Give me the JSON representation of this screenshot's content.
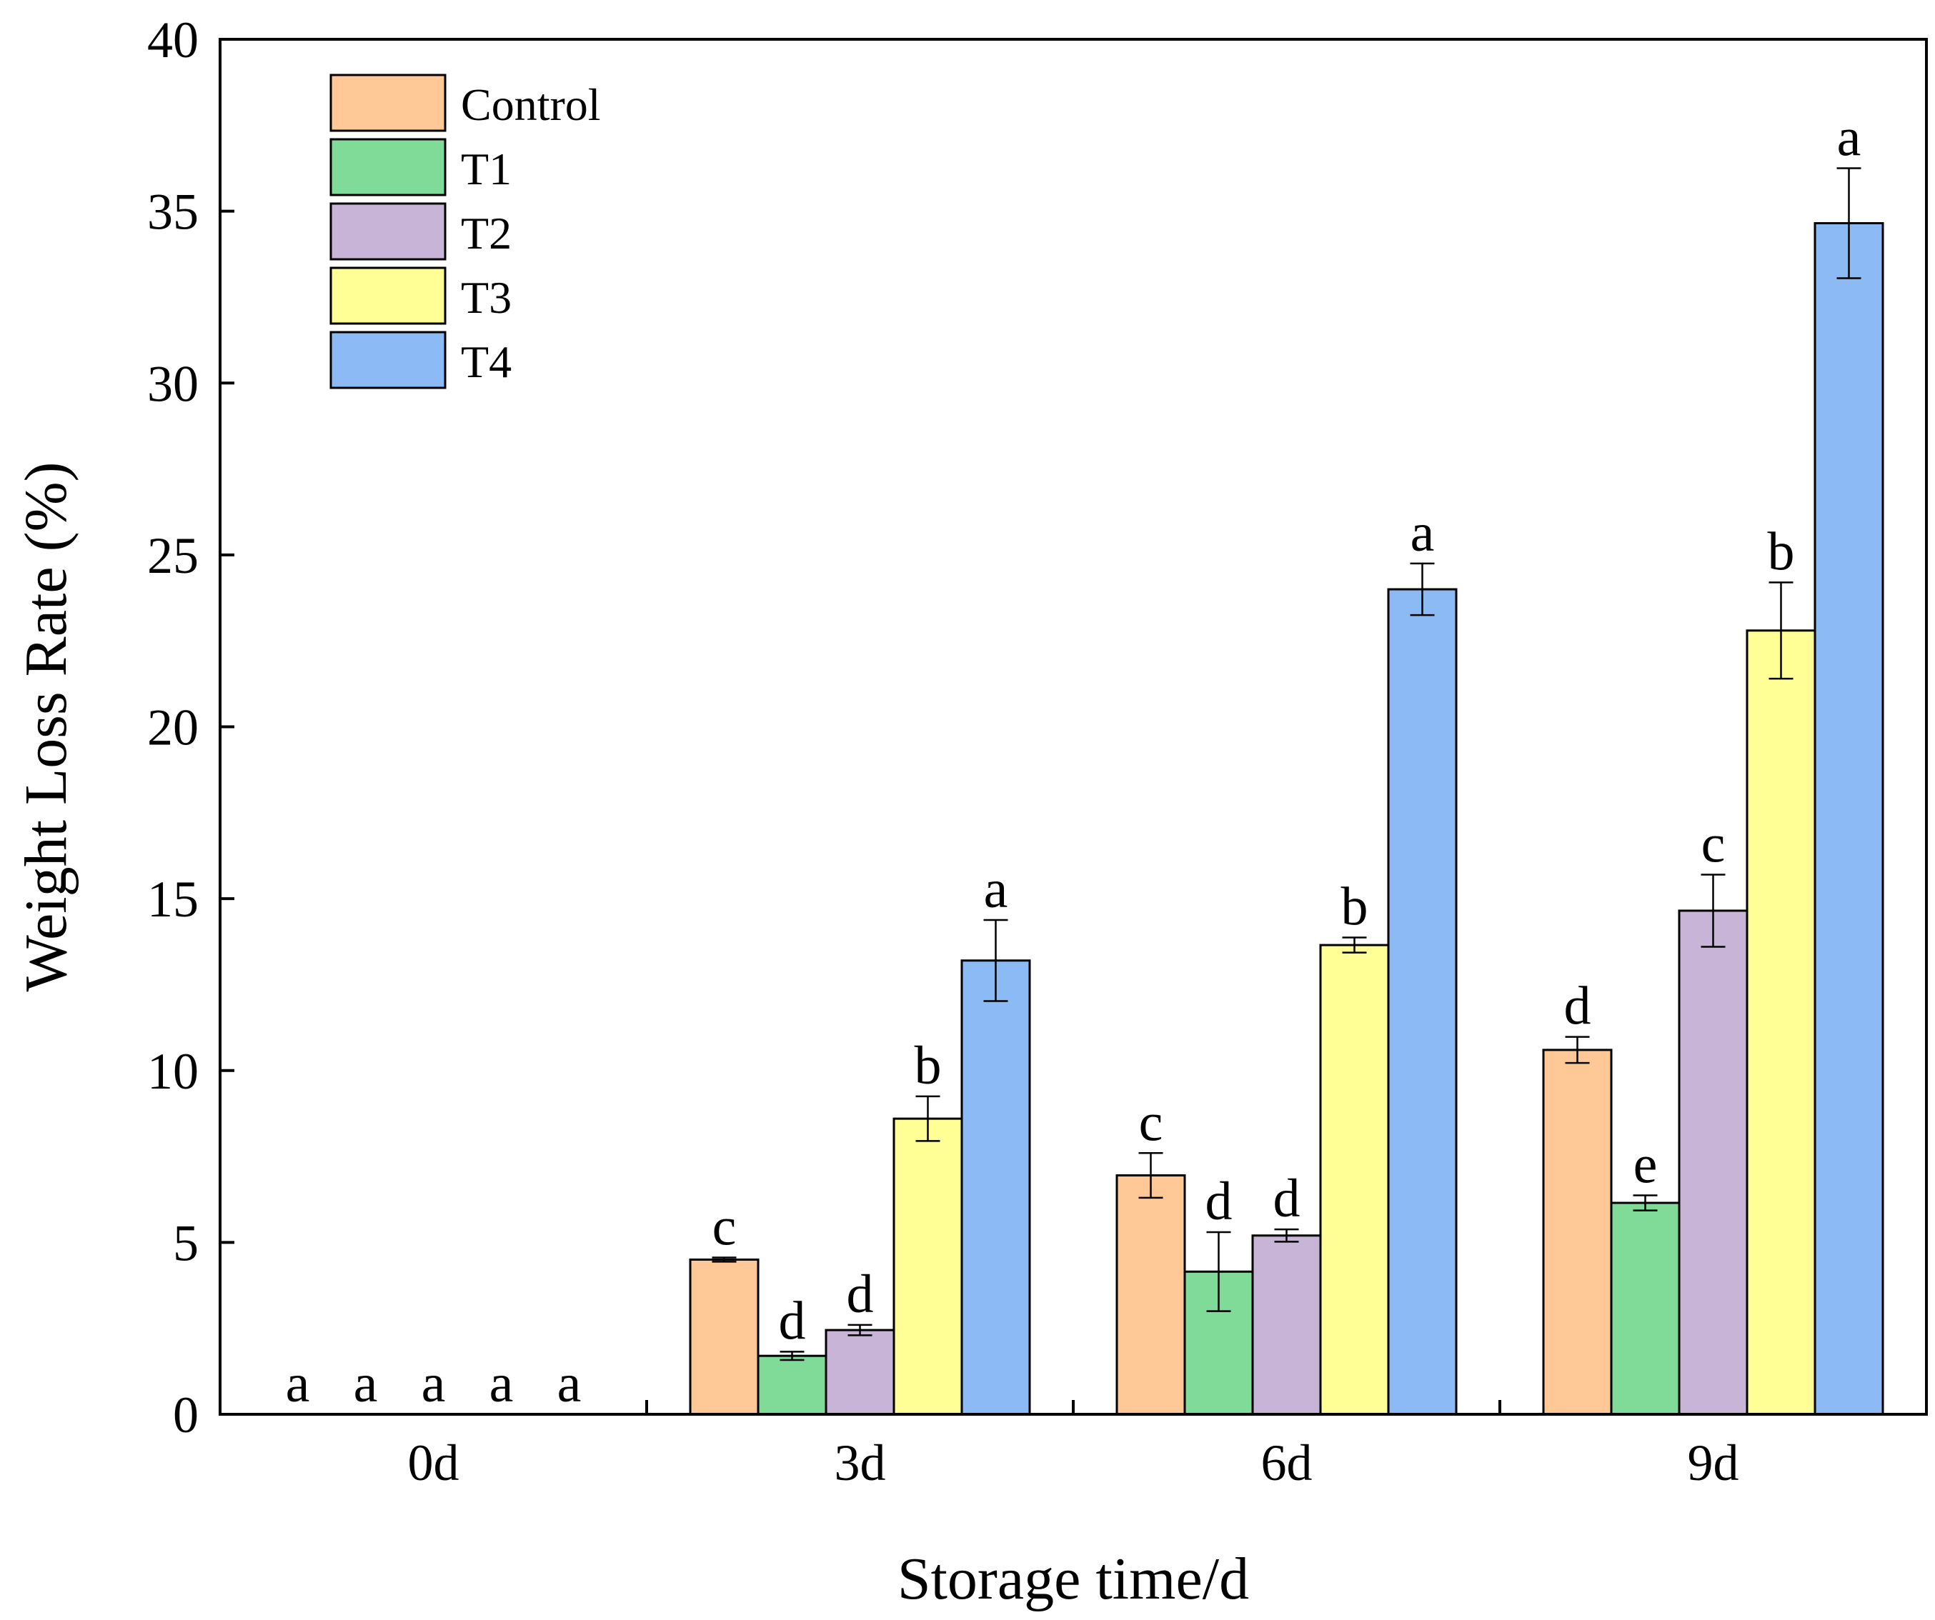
{
  "chart_data": {
    "type": "bar",
    "title": "",
    "xlabel": "Storage time/d",
    "ylabel": "Weight Loss Rate (%)",
    "ylim": [
      0,
      40
    ],
    "yticks": [
      0,
      5,
      10,
      15,
      20,
      25,
      30,
      35,
      40
    ],
    "categories": [
      "0d",
      "3d",
      "6d",
      "9d"
    ],
    "legend_position": "top-left",
    "grid": false,
    "series": [
      {
        "name": "Control",
        "color": "#FFC896",
        "values": [
          0,
          4.5,
          6.95,
          10.6
        ],
        "errors": [
          0,
          0.06,
          0.65,
          0.38
        ],
        "letters": [
          "a",
          "c",
          "c",
          "d"
        ]
      },
      {
        "name": "T1",
        "color": "#80DA98",
        "values": [
          0,
          1.7,
          4.15,
          6.15
        ],
        "errors": [
          0,
          0.12,
          1.15,
          0.22
        ],
        "letters": [
          "a",
          "d",
          "d",
          "e"
        ]
      },
      {
        "name": "T2",
        "color": "#C8B4D6",
        "values": [
          0,
          2.45,
          5.2,
          14.65
        ],
        "errors": [
          0,
          0.15,
          0.18,
          1.05
        ],
        "letters": [
          "a",
          "d",
          "d",
          "c"
        ]
      },
      {
        "name": "T3",
        "color": "#FFFF96",
        "values": [
          0,
          8.6,
          13.65,
          22.8
        ],
        "errors": [
          0,
          0.65,
          0.22,
          1.4
        ],
        "letters": [
          "a",
          "b",
          "b",
          "b"
        ]
      },
      {
        "name": "T4",
        "color": "#8CBAF5",
        "values": [
          0,
          13.2,
          24.0,
          34.65
        ],
        "errors": [
          0,
          1.18,
          0.75,
          1.6
        ],
        "letters": [
          "a",
          "a",
          "a",
          "a"
        ]
      }
    ]
  }
}
